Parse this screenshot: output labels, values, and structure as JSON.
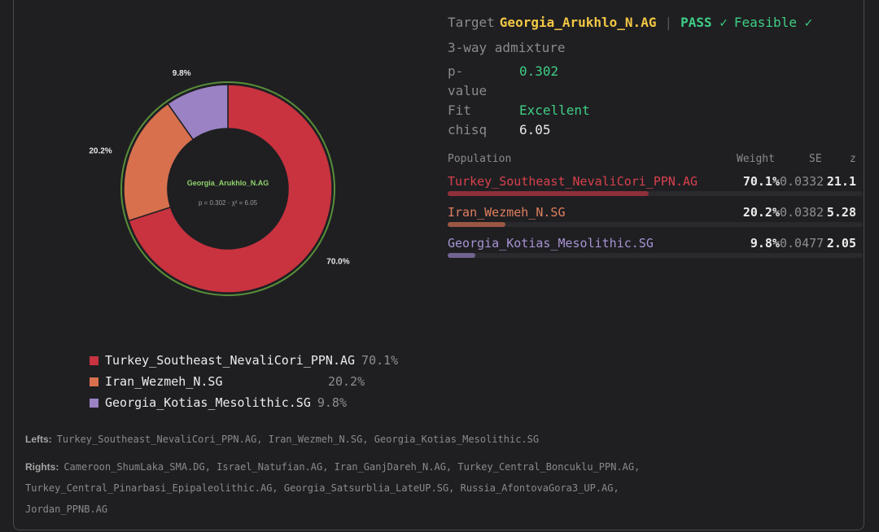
{
  "header": {
    "target_label": "Target",
    "target_name": "Georgia_Arukhlo_N.AG",
    "separator": "|",
    "pass_label": "PASS ✓",
    "feasible_label": "Feasible ✓",
    "model": "3-way admixture"
  },
  "stats": {
    "pvalue_label_1": "p-",
    "pvalue_label_2": "value",
    "pvalue": "0.302",
    "fit_label": "Fit",
    "fit": "Excellent",
    "chisq_label": "chisq",
    "chisq": "6.05"
  },
  "table": {
    "headers": {
      "population": "Population",
      "weight": "Weight",
      "se": "SE",
      "z": "z"
    },
    "rows": [
      {
        "population": "Turkey_Southeast_NevaliCori_PPN.AG",
        "weight": "70.1%",
        "se": "0.0332",
        "z": "21.1",
        "fraction": 0.701
      },
      {
        "population": "Iran_Wezmeh_N.SG",
        "weight": "20.2%",
        "se": "0.0382",
        "z": "5.28",
        "fraction": 0.202
      },
      {
        "population": "Georgia_Kotias_Mesolithic.SG",
        "weight": "9.8%",
        "se": "0.0477",
        "z": "2.05",
        "fraction": 0.098
      }
    ]
  },
  "chart_data": {
    "type": "pie",
    "variant": "donut",
    "center_title": "Georgia_Arukhlo_N.AG",
    "center_subtitle": "p = 0.302 · χ² = 6.05",
    "slices": [
      {
        "name": "Turkey_Southeast_NevaliCori_PPN.AG",
        "value": 70.1,
        "label": "70.0%",
        "legend_pct": "70.1%",
        "color": "#c8333f"
      },
      {
        "name": "Iran_Wezmeh_N.SG",
        "value": 20.2,
        "label": "20.2%",
        "legend_pct": "20.2%",
        "color": "#d8704e"
      },
      {
        "name": "Georgia_Kotias_Mesolithic.SG",
        "value": 9.8,
        "label": "9.8%",
        "legend_pct": "9.8%",
        "color": "#9a82c4"
      }
    ],
    "ring_color": "#5e9a3c",
    "legend_placement": "bottom"
  },
  "footer": {
    "lefts_label": "Lefts:",
    "lefts": "Turkey_Southeast_NevaliCori_PPN.AG, Iran_Wezmeh_N.SG, Georgia_Kotias_Mesolithic.SG",
    "rights_label": "Rights:",
    "rights_1": "Cameroon_ShumLaka_SMA.DG, Israel_Natufian.AG, Iran_GanjDareh_N.AG, Turkey_Central_Boncuklu_PPN.AG,",
    "rights_2": "Turkey_Central_Pinarbasi_Epipaleolithic.AG, Georgia_Satsurblia_LateUP.SG, Russia_AfontovaGora3_UP.AG,",
    "rights_3": "Jordan_PPNB.AG"
  }
}
